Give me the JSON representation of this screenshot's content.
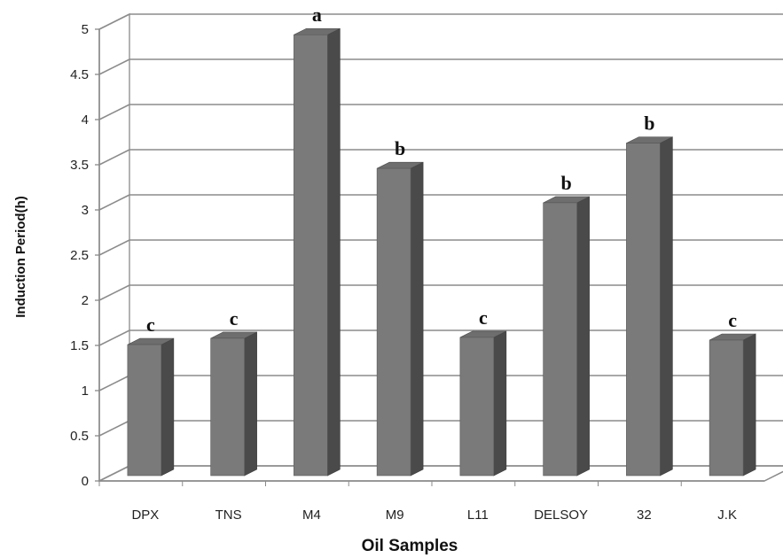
{
  "chart_data": {
    "type": "bar",
    "xlabel": "Oil Samples",
    "ylabel": "Induction Period(h)",
    "ylim": [
      0,
      5
    ],
    "ytick_step": 0.5,
    "yticks": [
      "0",
      "0.5",
      "1",
      "1.5",
      "2",
      "2.5",
      "3",
      "3.5",
      "4",
      "4.5",
      "5"
    ],
    "grid": true,
    "style": "3d-column",
    "bar_color": "#7a7a7a",
    "categories": [
      "DPX",
      "TNS",
      "M4",
      "M9",
      "L11",
      "DELSOY",
      "32",
      "J.K"
    ],
    "values": [
      1.45,
      1.52,
      4.88,
      3.4,
      1.53,
      3.02,
      3.68,
      1.5
    ],
    "labels": [
      "c",
      "c",
      "a",
      "b",
      "c",
      "b",
      "b",
      "c"
    ]
  }
}
